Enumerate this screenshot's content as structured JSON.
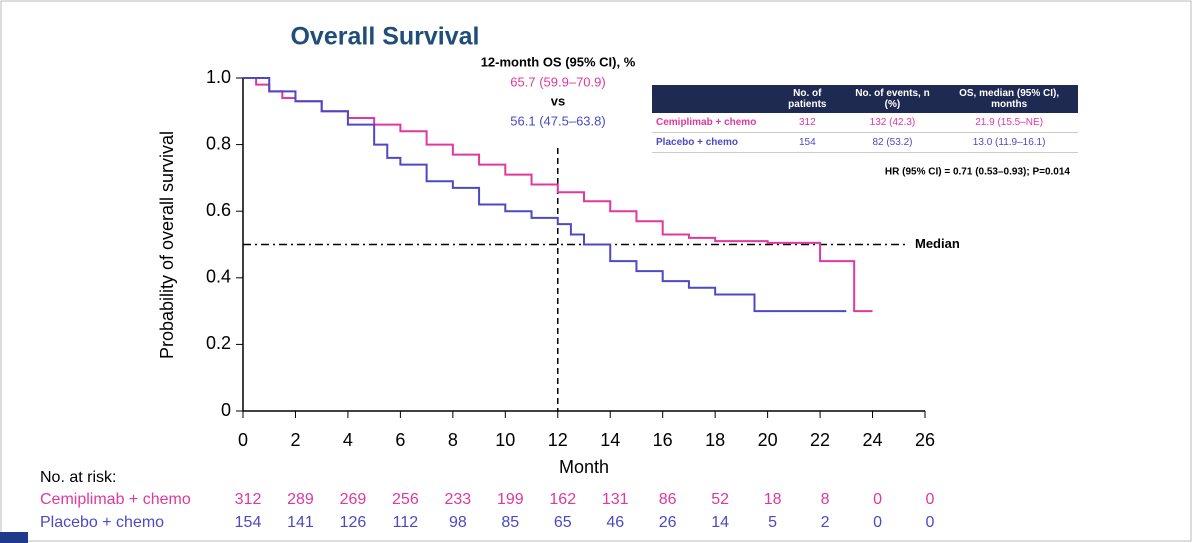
{
  "chart_data": {
    "type": "step",
    "title": "Overall Survival",
    "xlabel": "Month",
    "ylabel": "Probability of overall survival",
    "xlim": [
      0,
      26
    ],
    "ylim": [
      0,
      1
    ],
    "xticks": [
      0,
      2,
      4,
      6,
      8,
      10,
      12,
      14,
      16,
      18,
      20,
      22,
      24,
      26
    ],
    "yticks": [
      0,
      0.2,
      0.4,
      0.6,
      0.8,
      {
        "value": 1,
        "label": "1.0"
      }
    ],
    "series": [
      {
        "name": "Cemiplimab + chemo",
        "color": "#e0389e",
        "x": [
          0,
          0.5,
          1,
          1.5,
          2,
          3,
          4,
          5,
          6,
          7,
          8,
          9,
          10,
          11,
          12,
          13,
          14,
          15,
          16,
          17,
          18,
          20,
          22,
          23.3,
          24
        ],
        "y": [
          1,
          0.98,
          0.96,
          0.94,
          0.93,
          0.9,
          0.88,
          0.86,
          0.84,
          0.8,
          0.77,
          0.74,
          0.71,
          0.68,
          0.657,
          0.63,
          0.6,
          0.57,
          0.53,
          0.52,
          0.51,
          0.505,
          0.45,
          0.3,
          0.3
        ]
      },
      {
        "name": "Placebo + chemo",
        "color": "#4c49c4",
        "x": [
          0,
          1,
          2,
          3,
          4,
          5,
          5.5,
          6,
          7,
          8,
          9,
          10,
          11,
          12,
          12.5,
          13,
          14,
          15,
          16,
          17,
          18,
          19.5,
          23
        ],
        "y": [
          1,
          0.96,
          0.93,
          0.9,
          0.86,
          0.8,
          0.76,
          0.74,
          0.69,
          0.67,
          0.62,
          0.6,
          0.58,
          0.561,
          0.53,
          0.5,
          0.45,
          0.42,
          0.39,
          0.37,
          0.35,
          0.3,
          0.3
        ]
      }
    ],
    "median_line": 0.5,
    "median_label": "Median",
    "landmark_x": 12,
    "annotation": {
      "title": "12-month OS (95% CI), %",
      "first": "65.7 (59.9–70.9)",
      "vs": "vs",
      "second": "56.1 (47.5–63.8)"
    },
    "table": {
      "columns": [
        "",
        "No. of patients",
        "No. of events, n (%)",
        "OS, median (95% CI), months"
      ],
      "rows": [
        [
          "Cemiplimab + chemo",
          "312",
          "132 (42.3)",
          "21.9 (15.5–NE)"
        ],
        [
          "Placebo + chemo",
          "154",
          "82 (53.2)",
          "13.0 (11.9–16.1)"
        ]
      ],
      "note": "HR (95% CI) = 0.71 (0.53–0.93); P=0.014"
    },
    "risk_table": {
      "title": "No. at risk:",
      "rows": [
        {
          "name": "Cemiplimab + chemo",
          "values": [
            312,
            289,
            269,
            256,
            233,
            199,
            162,
            131,
            86,
            52,
            18,
            8,
            0,
            0
          ]
        },
        {
          "name": "Placebo + chemo",
          "values": [
            154,
            141,
            126,
            112,
            98,
            85,
            65,
            46,
            26,
            14,
            5,
            2,
            0,
            0
          ]
        }
      ]
    }
  }
}
